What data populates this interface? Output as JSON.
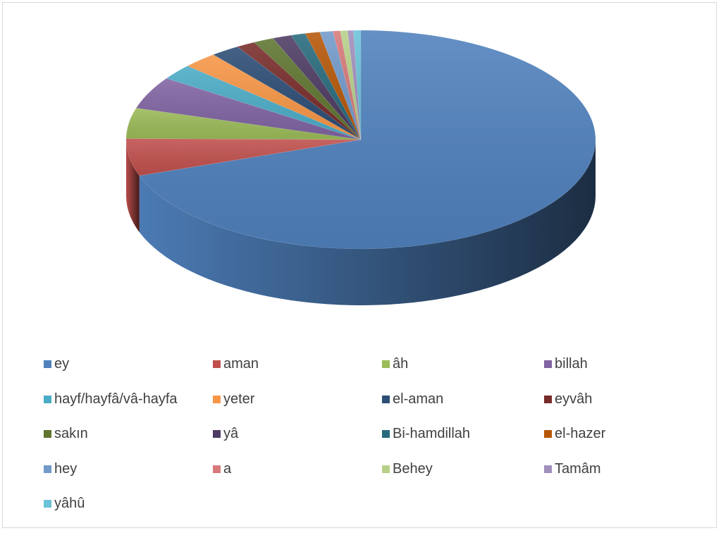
{
  "chart_data": {
    "type": "pie",
    "style": "3d",
    "title": "",
    "legend_position": "bottom",
    "slices": [
      {
        "label": "ey",
        "value": 69.5,
        "color": "#4f81bd"
      },
      {
        "label": "aman",
        "value": 5.5,
        "color": "#c0504d"
      },
      {
        "label": "âh",
        "value": 4.5,
        "color": "#9bbb59"
      },
      {
        "label": "billah",
        "value": 4.8,
        "color": "#8064a2"
      },
      {
        "label": "hayf/hayfâ/vâ-hayfa",
        "value": 2.3,
        "color": "#4bacc6"
      },
      {
        "label": "yeter",
        "value": 2.4,
        "color": "#f79646"
      },
      {
        "label": "el-aman",
        "value": 2.0,
        "color": "#2c4d75"
      },
      {
        "label": "eyvâh",
        "value": 1.3,
        "color": "#772c2a"
      },
      {
        "label": "sakın",
        "value": 1.4,
        "color": "#5f7530"
      },
      {
        "label": "yâ",
        "value": 1.3,
        "color": "#4d3b62"
      },
      {
        "label": "Bi-hamdillah",
        "value": 1.0,
        "color": "#276a7c"
      },
      {
        "label": "el-hazer",
        "value": 1.0,
        "color": "#b65708"
      },
      {
        "label": "hey",
        "value": 0.9,
        "color": "#729aca"
      },
      {
        "label": "a",
        "value": 0.5,
        "color": "#d7797a"
      },
      {
        "label": "Behey",
        "value": 0.5,
        "color": "#b7d088"
      },
      {
        "label": "Tamâm",
        "value": 0.4,
        "color": "#a18fbd"
      },
      {
        "label": "yâhû",
        "value": 0.5,
        "color": "#6bc2d9"
      }
    ]
  }
}
